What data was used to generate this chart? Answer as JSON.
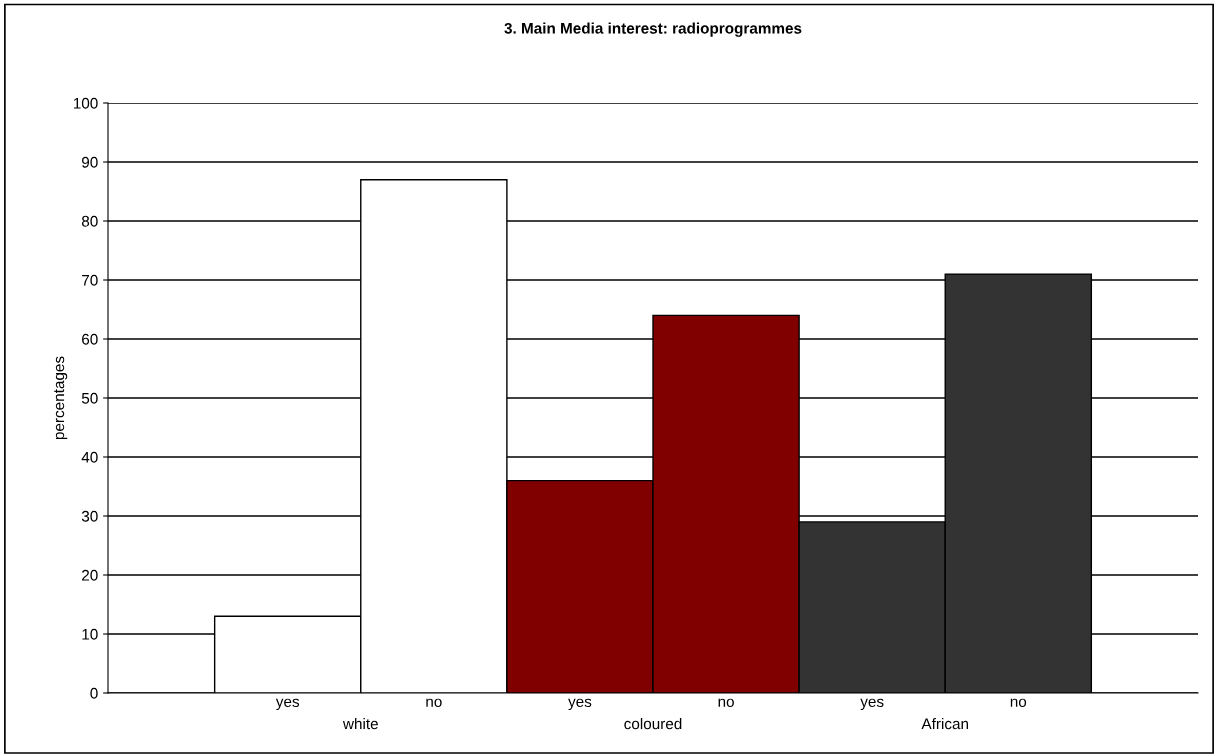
{
  "chart_data": {
    "type": "bar",
    "title": "3. Main Media interest: radioprogrammes",
    "ylabel": "percentages",
    "categories": [
      "yes",
      "no",
      "yes",
      "no",
      "yes",
      "no"
    ],
    "values": [
      13,
      87,
      36,
      64,
      29,
      71
    ],
    "colors": [
      "#ffffff",
      "#ffffff",
      "#800000",
      "#800000",
      "#333333",
      "#333333"
    ],
    "annotations": [
      "white",
      "coloured",
      "African"
    ],
    "ylim": [
      0,
      100
    ],
    "yticks": [
      0,
      10,
      20,
      30,
      40,
      50,
      60,
      70,
      80,
      90,
      100
    ],
    "grid": "y",
    "legend": false
  }
}
